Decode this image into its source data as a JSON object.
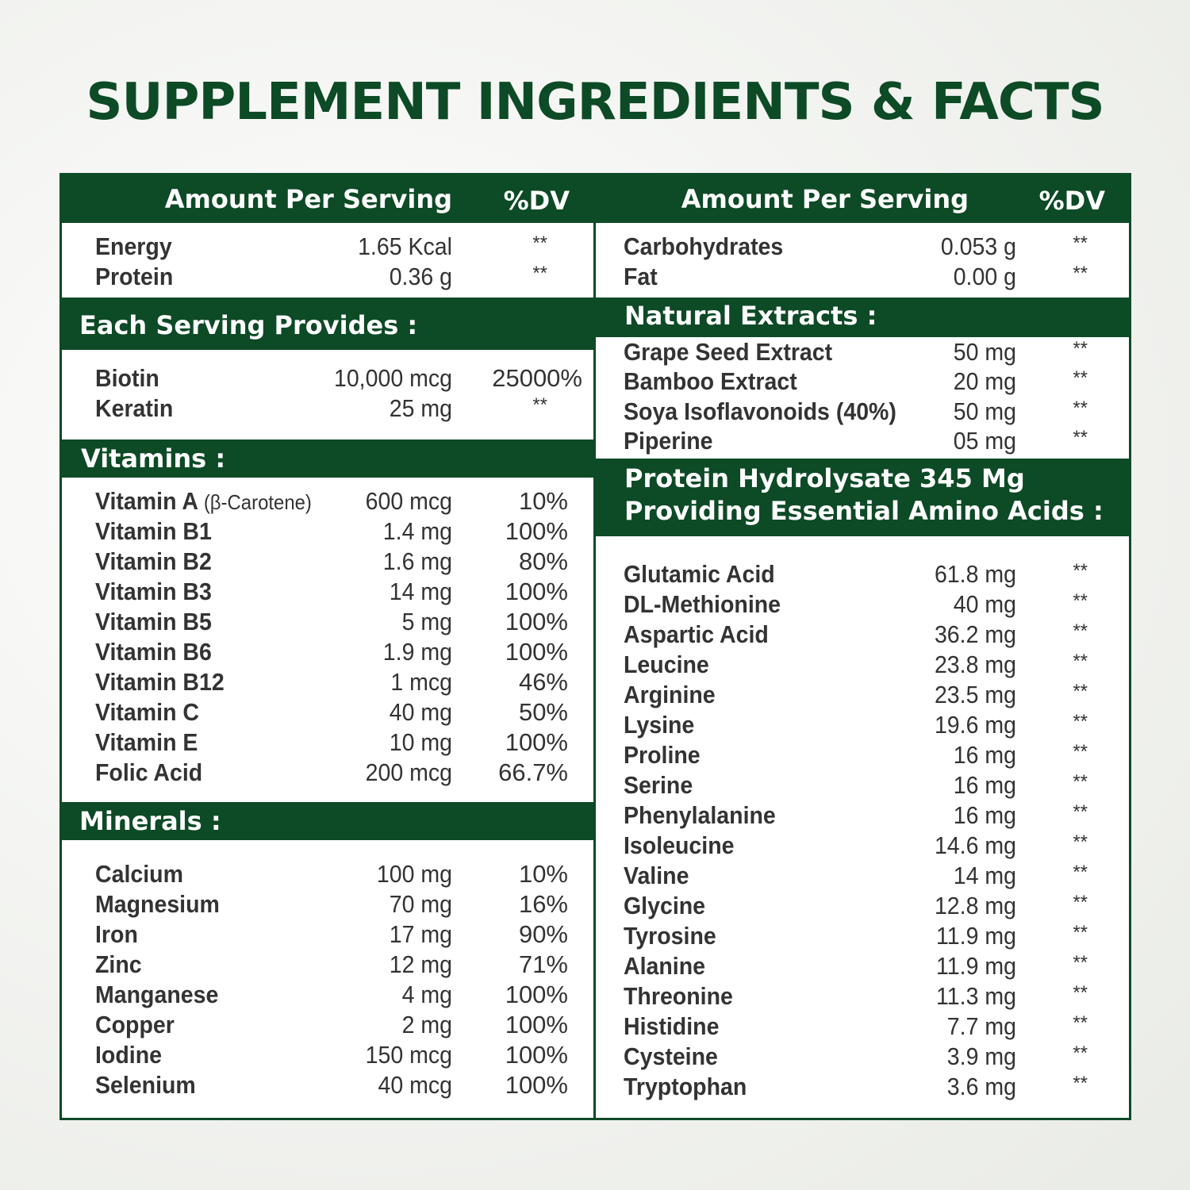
{
  "title": "SUPPLEMENT INGREDIENTS & FACTS",
  "left": {
    "header": {
      "amount": "Amount Per Serving",
      "dv": "%DV"
    },
    "basics": [
      {
        "name": "Energy",
        "amount": "1.65 Kcal",
        "dv": "**"
      },
      {
        "name": "Protein",
        "amount": "0.36 g",
        "dv": "**"
      }
    ],
    "each_serving": {
      "heading": "Each Serving Provides :",
      "items": [
        {
          "name": "Biotin",
          "amount": "10,000 mcg",
          "dv": "25000%"
        },
        {
          "name": "Keratin",
          "amount": "25 mg",
          "dv": "**"
        }
      ]
    },
    "vitamins": {
      "heading": "Vitamins :",
      "items": [
        {
          "name": "Vitamin A",
          "note": "(β-Carotene)",
          "amount": "600 mcg",
          "dv": "10%"
        },
        {
          "name": "Vitamin B1",
          "amount": "1.4 mg",
          "dv": "100%"
        },
        {
          "name": "Vitamin B2",
          "amount": "1.6 mg",
          "dv": "80%"
        },
        {
          "name": "Vitamin B3",
          "amount": "14 mg",
          "dv": "100%"
        },
        {
          "name": "Vitamin B5",
          "amount": "5 mg",
          "dv": "100%"
        },
        {
          "name": "Vitamin B6",
          "amount": "1.9 mg",
          "dv": "100%"
        },
        {
          "name": "Vitamin B12",
          "amount": "1 mcg",
          "dv": "46%"
        },
        {
          "name": "Vitamin C",
          "amount": "40 mg",
          "dv": "50%"
        },
        {
          "name": "Vitamin E",
          "amount": "10 mg",
          "dv": "100%"
        },
        {
          "name": "Folic Acid",
          "amount": "200 mcg",
          "dv": "66.7%"
        }
      ]
    },
    "minerals": {
      "heading": "Minerals :",
      "items": [
        {
          "name": "Calcium",
          "amount": "100 mg",
          "dv": "10%"
        },
        {
          "name": "Magnesium",
          "amount": "70 mg",
          "dv": "16%"
        },
        {
          "name": "Iron",
          "amount": "17 mg",
          "dv": "90%"
        },
        {
          "name": "Zinc",
          "amount": "12 mg",
          "dv": "71%"
        },
        {
          "name": "Manganese",
          "amount": "4 mg",
          "dv": "100%"
        },
        {
          "name": "Copper",
          "amount": "2 mg",
          "dv": "100%"
        },
        {
          "name": "Iodine",
          "amount": "150 mcg",
          "dv": "100%"
        },
        {
          "name": "Selenium",
          "amount": "40 mcg",
          "dv": "100%"
        }
      ]
    }
  },
  "right": {
    "header": {
      "amount": "Amount Per Serving",
      "dv": "%DV"
    },
    "basics": [
      {
        "name": "Carbohydrates",
        "amount": "0.053 g",
        "dv": "**"
      },
      {
        "name": "Fat",
        "amount": "0.00 g",
        "dv": "**"
      }
    ],
    "natural_extracts": {
      "heading": "Natural Extracts :",
      "items": [
        {
          "name": "Grape Seed Extract",
          "amount": "50 mg",
          "dv": "**"
        },
        {
          "name": "Bamboo Extract",
          "amount": "20 mg",
          "dv": "**"
        },
        {
          "name": "Soya Isoflavonoids (40%)",
          "amount": "50 mg",
          "dv": "**"
        },
        {
          "name": "Piperine",
          "amount": "05 mg",
          "dv": "**"
        }
      ]
    },
    "amino_acids": {
      "heading_line1": "Protein Hydrolysate 345 Mg",
      "heading_line2": "Providing Essential Amino Acids :",
      "items": [
        {
          "name": "Glutamic Acid",
          "amount": "61.8 mg",
          "dv": "**"
        },
        {
          "name": "DL-Methionine",
          "amount": "40 mg",
          "dv": "**"
        },
        {
          "name": "Aspartic Acid",
          "amount": "36.2 mg",
          "dv": "**"
        },
        {
          "name": "Leucine",
          "amount": "23.8 mg",
          "dv": "**"
        },
        {
          "name": "Arginine",
          "amount": "23.5 mg",
          "dv": "**"
        },
        {
          "name": "Lysine",
          "amount": "19.6 mg",
          "dv": "**"
        },
        {
          "name": "Proline",
          "amount": "16 mg",
          "dv": "**"
        },
        {
          "name": "Serine",
          "amount": "16 mg",
          "dv": "**"
        },
        {
          "name": "Phenylalanine",
          "amount": "16 mg",
          "dv": "**"
        },
        {
          "name": "Isoleucine",
          "amount": "14.6 mg",
          "dv": "**"
        },
        {
          "name": "Valine",
          "amount": "14 mg",
          "dv": "**"
        },
        {
          "name": "Glycine",
          "amount": "12.8 mg",
          "dv": "**"
        },
        {
          "name": "Tyrosine",
          "amount": "11.9 mg",
          "dv": "**"
        },
        {
          "name": "Alanine",
          "amount": "11.9 mg",
          "dv": "**"
        },
        {
          "name": "Threonine",
          "amount": "11.3 mg",
          "dv": "**"
        },
        {
          "name": "Histidine",
          "amount": "7.7 mg",
          "dv": "**"
        },
        {
          "name": "Cysteine",
          "amount": "3.9 mg",
          "dv": "**"
        },
        {
          "name": "Tryptophan",
          "amount": "3.6 mg",
          "dv": "**"
        }
      ]
    }
  }
}
